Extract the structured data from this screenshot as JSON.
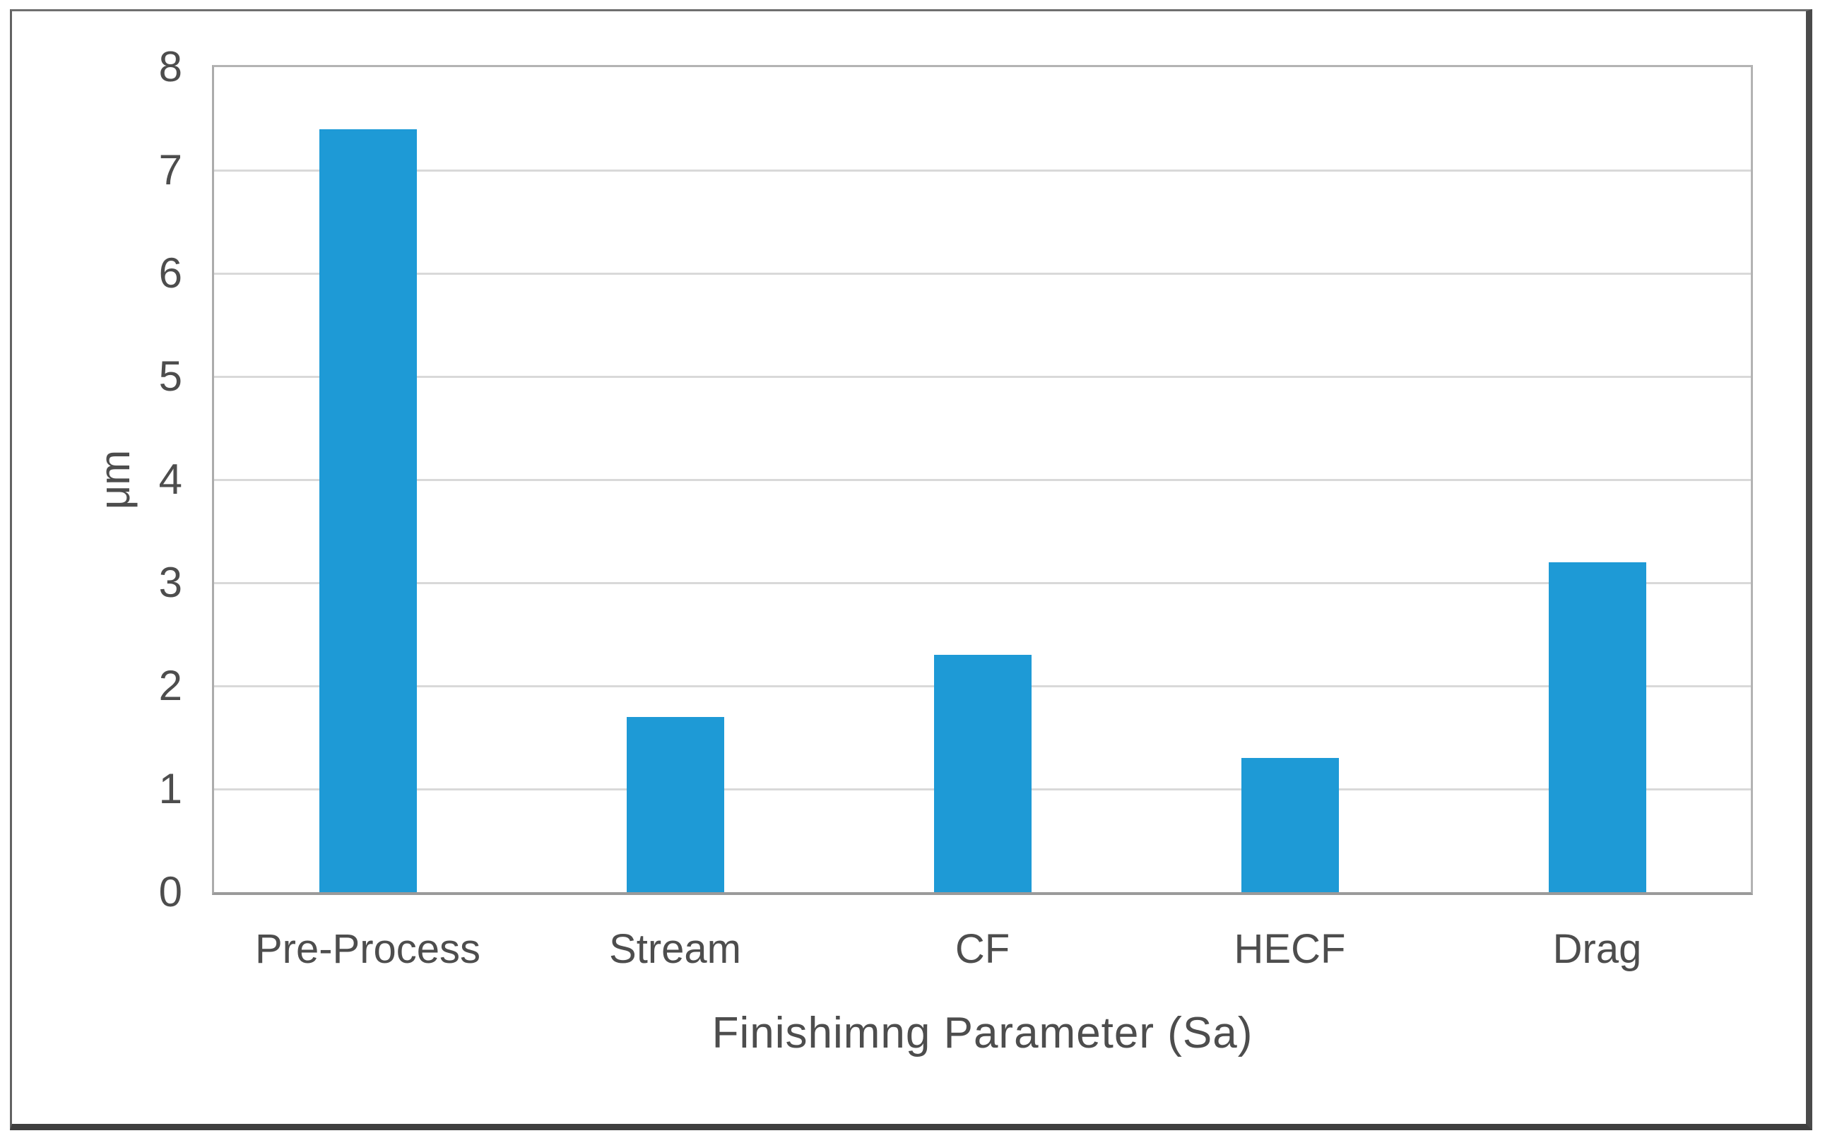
{
  "chart_data": {
    "type": "bar",
    "categories": [
      "Pre-Process",
      "Stream",
      "CF",
      "HECF",
      "Drag"
    ],
    "values": [
      7.4,
      1.7,
      2.3,
      1.3,
      3.2
    ],
    "title": "",
    "xlabel": "Finishimng Parameter (Sa)",
    "ylabel": "μm",
    "ylim": [
      0,
      8
    ],
    "yticks": [
      0,
      1,
      2,
      3,
      4,
      5,
      6,
      7,
      8
    ],
    "grid": true,
    "legend": false,
    "bar_color": "#1E9AD6",
    "gridline_color": "#D9D9D9",
    "axis_border_color": "#B3B3B3",
    "label_color": "#4D4D4D"
  }
}
